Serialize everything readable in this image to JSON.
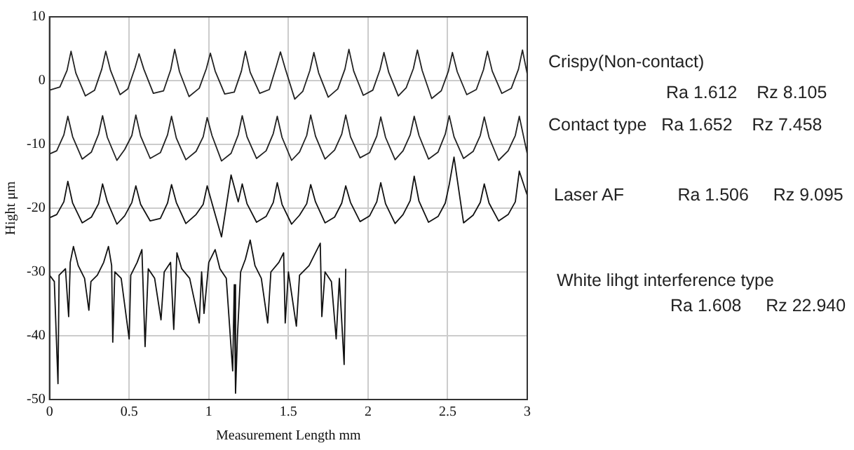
{
  "chart_data": {
    "type": "line",
    "xlabel": "Measurement Length mm",
    "ylabel": "Hight μm",
    "xlim": [
      0,
      3
    ],
    "ylim": [
      -50,
      10
    ],
    "xticks": [
      0,
      0.5,
      1,
      1.5,
      2,
      2.5,
      3
    ],
    "yticks": [
      -50,
      -40,
      -30,
      -20,
      -10,
      0,
      10
    ],
    "grid": true,
    "annotations": [
      "Crispy(Non-contact)",
      "Ra 1.612    Rz 8.105",
      "Contact type   Ra 1.652    Rz 7.458",
      "Laser AF           Ra 1.506     Rz 9.095",
      "White lihgt interference type",
      "Ra 1.608     Rz 22.940"
    ],
    "series": [
      {
        "color": "#222222",
        "x": [
          0,
          0.065,
          0.11,
          0.135,
          0.165,
          0.225,
          0.283,
          0.328,
          0.353,
          0.383,
          0.443,
          0.492,
          0.537,
          0.562,
          0.592,
          0.652,
          0.716,
          0.761,
          0.786,
          0.816,
          0.876,
          0.94,
          0.985,
          1.01,
          1.04,
          1.1,
          1.16,
          1.205,
          1.23,
          1.26,
          1.32,
          1.38,
          1.425,
          1.45,
          1.48,
          1.54,
          1.59,
          1.635,
          1.66,
          1.69,
          1.75,
          1.81,
          1.855,
          1.88,
          1.91,
          1.97,
          2.03,
          2.075,
          2.1,
          2.13,
          2.19,
          2.24,
          2.285,
          2.31,
          2.34,
          2.4,
          2.46,
          2.505,
          2.53,
          2.56,
          2.62,
          2.68,
          2.725,
          2.75,
          2.78,
          2.84,
          2.9,
          2.945,
          2.97,
          3
        ],
        "values": [
          -1.5,
          -1.0,
          1.6,
          4.6,
          1.2,
          -2.4,
          -1.5,
          1.8,
          4.6,
          1.6,
          -2.2,
          -1.3,
          2.0,
          4.2,
          1.8,
          -2.0,
          -1.6,
          1.7,
          4.9,
          1.4,
          -2.5,
          -1.2,
          1.9,
          4.3,
          1.5,
          -2.1,
          -1.8,
          1.5,
          4.6,
          1.3,
          -2.0,
          -1.4,
          2.3,
          4.5,
          1.9,
          -2.9,
          -1.7,
          1.6,
          4.4,
          1.2,
          -2.6,
          -1.3,
          1.8,
          4.9,
          1.5,
          -2.3,
          -1.5,
          1.7,
          4.4,
          1.3,
          -2.4,
          -1.1,
          1.9,
          4.8,
          1.6,
          -2.8,
          -1.6,
          1.5,
          4.4,
          1.4,
          -2.2,
          -1.4,
          1.7,
          4.6,
          1.5,
          -2.0,
          -1.2,
          1.8,
          4.8,
          1.0
        ]
      },
      {
        "color": "#222222",
        "x": [
          0,
          0.045,
          0.09,
          0.115,
          0.145,
          0.205,
          0.263,
          0.308,
          0.333,
          0.363,
          0.423,
          0.472,
          0.517,
          0.542,
          0.572,
          0.632,
          0.696,
          0.741,
          0.766,
          0.796,
          0.856,
          0.92,
          0.965,
          0.99,
          1.02,
          1.08,
          1.14,
          1.185,
          1.21,
          1.24,
          1.3,
          1.36,
          1.405,
          1.43,
          1.46,
          1.52,
          1.57,
          1.615,
          1.64,
          1.67,
          1.73,
          1.79,
          1.835,
          1.86,
          1.89,
          1.95,
          2.01,
          2.055,
          2.08,
          2.11,
          2.17,
          2.22,
          2.265,
          2.29,
          2.32,
          2.38,
          2.44,
          2.485,
          2.51,
          2.54,
          2.6,
          2.66,
          2.705,
          2.73,
          2.76,
          2.82,
          2.88,
          2.925,
          2.95,
          3
        ],
        "values": [
          -11.5,
          -11.0,
          -8.5,
          -5.6,
          -8.8,
          -12.3,
          -11.2,
          -8.4,
          -5.5,
          -8.9,
          -12.5,
          -10.8,
          -8.6,
          -5.4,
          -8.7,
          -12.2,
          -11.3,
          -8.5,
          -5.6,
          -9.0,
          -12.4,
          -11.1,
          -8.8,
          -5.8,
          -8.6,
          -12.6,
          -11.4,
          -8.5,
          -5.5,
          -8.8,
          -12.2,
          -11.0,
          -8.3,
          -5.6,
          -8.9,
          -12.5,
          -11.2,
          -8.6,
          -5.4,
          -8.7,
          -12.3,
          -10.9,
          -8.4,
          -5.4,
          -8.8,
          -12.1,
          -11.3,
          -8.7,
          -5.7,
          -8.9,
          -12.4,
          -11.0,
          -8.5,
          -5.6,
          -8.6,
          -12.3,
          -11.2,
          -8.4,
          -5.5,
          -8.8,
          -12.2,
          -11.1,
          -8.6,
          -5.7,
          -8.9,
          -12.5,
          -11.0,
          -8.6,
          -5.6,
          -11.5
        ]
      },
      {
        "color": "#111111",
        "x": [
          0,
          0.045,
          0.09,
          0.115,
          0.145,
          0.205,
          0.263,
          0.308,
          0.333,
          0.363,
          0.423,
          0.472,
          0.517,
          0.542,
          0.572,
          0.632,
          0.696,
          0.741,
          0.766,
          0.796,
          0.856,
          0.92,
          0.965,
          0.99,
          1.02,
          1.08,
          1.14,
          1.185,
          1.21,
          1.24,
          1.3,
          1.36,
          1.405,
          1.43,
          1.46,
          1.52,
          1.57,
          1.615,
          1.64,
          1.67,
          1.73,
          1.79,
          1.835,
          1.86,
          1.89,
          1.95,
          2.01,
          2.055,
          2.08,
          2.11,
          2.17,
          2.22,
          2.265,
          2.29,
          2.32,
          2.38,
          2.44,
          2.485,
          2.51,
          2.54,
          2.6,
          2.66,
          2.705,
          2.73,
          2.76,
          2.82,
          2.88,
          2.925,
          2.95,
          3
        ],
        "values": [
          -21.5,
          -21.0,
          -19.0,
          -15.8,
          -19.2,
          -22.3,
          -21.4,
          -19.3,
          -16.2,
          -19.0,
          -22.5,
          -21.2,
          -19.1,
          -16.5,
          -19.4,
          -22.0,
          -21.6,
          -19.2,
          -16.3,
          -19.1,
          -22.4,
          -21.0,
          -19.4,
          -16.5,
          -19.2,
          -24.5,
          -14.8,
          -19.0,
          -16.2,
          -19.3,
          -22.2,
          -21.3,
          -19.1,
          -16.0,
          -19.4,
          -22.5,
          -21.1,
          -19.3,
          -16.3,
          -19.0,
          -22.3,
          -21.4,
          -19.2,
          -16.5,
          -19.1,
          -22.1,
          -21.2,
          -19.0,
          -16.0,
          -19.3,
          -22.4,
          -21.0,
          -18.8,
          -15.0,
          -18.9,
          -22.2,
          -21.3,
          -19.2,
          -16.3,
          -12.0,
          -22.3,
          -21.1,
          -19.1,
          -16.2,
          -19.2,
          -22.0,
          -21.0,
          -19.0,
          -14.2,
          -18.0
        ]
      },
      {
        "color": "#111111",
        "x": [
          0,
          0.03,
          0.053,
          0.06,
          0.1,
          0.12,
          0.13,
          0.15,
          0.18,
          0.22,
          0.247,
          0.26,
          0.3,
          0.34,
          0.37,
          0.39,
          0.397,
          0.41,
          0.45,
          0.5,
          0.51,
          0.55,
          0.58,
          0.6,
          0.62,
          0.66,
          0.7,
          0.72,
          0.76,
          0.78,
          0.8,
          0.83,
          0.88,
          0.94,
          0.955,
          0.97,
          1.0,
          1.04,
          1.07,
          1.11,
          1.15,
          1.16,
          1.168,
          1.18,
          1.2,
          1.23,
          1.26,
          1.29,
          1.33,
          1.37,
          1.39,
          1.44,
          1.47,
          1.48,
          1.5,
          1.55,
          1.57,
          1.63,
          1.67,
          1.7,
          1.71,
          1.73,
          1.77,
          1.8,
          1.82,
          1.85,
          1.86
        ],
        "values": [
          -30.5,
          -31.5,
          -47.5,
          -30.5,
          -29.5,
          -37,
          -28.5,
          -26,
          -29,
          -31,
          -36,
          -31.5,
          -30.5,
          -28.5,
          -26,
          -29,
          -41,
          -30,
          -31,
          -40.5,
          -30.5,
          -28.5,
          -26.5,
          -41.7,
          -29.5,
          -31,
          -37.5,
          -30,
          -28.5,
          -39,
          -27,
          -29.5,
          -31,
          -38,
          -30,
          -36.5,
          -28.5,
          -26.5,
          -29.5,
          -31,
          -45.5,
          -32,
          -49,
          -40,
          -30,
          -28,
          -25,
          -29,
          -31,
          -38,
          -30,
          -28.5,
          -27,
          -38,
          -30,
          -38.5,
          -30.5,
          -29,
          -27,
          -25.5,
          -37,
          -30,
          -31.5,
          -40.5,
          -31,
          -44.5,
          -29.5
        ]
      }
    ]
  }
}
